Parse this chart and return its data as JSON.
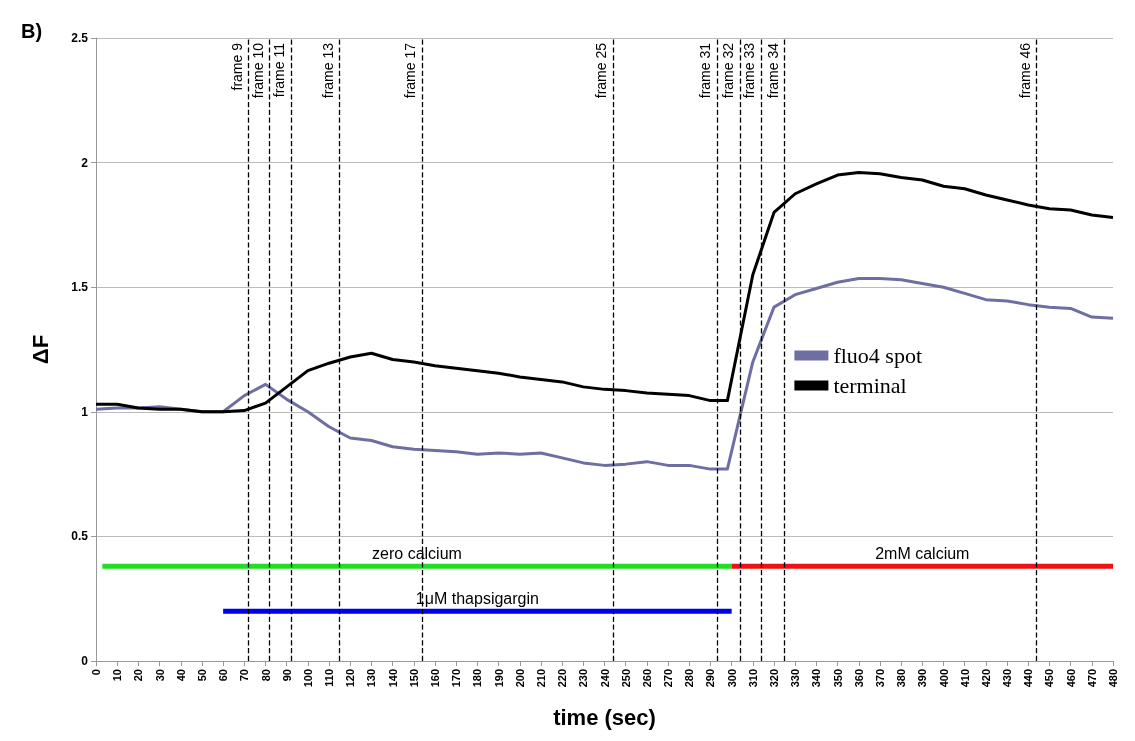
{
  "chart_data": {
    "type": "line",
    "title": "B)",
    "xlabel": "time (sec)",
    "ylabel": "ΔF",
    "x": [
      0,
      10,
      20,
      30,
      40,
      50,
      60,
      70,
      80,
      90,
      100,
      110,
      120,
      130,
      140,
      150,
      160,
      170,
      180,
      190,
      200,
      210,
      220,
      230,
      240,
      250,
      260,
      270,
      280,
      290,
      298,
      310,
      320,
      330,
      340,
      350,
      360,
      370,
      380,
      390,
      400,
      410,
      420,
      430,
      440,
      450,
      460,
      470,
      480
    ],
    "series": [
      {
        "name": "fluo4 spot",
        "color": "#6e6ea3",
        "values": [
          1.01,
          1.015,
          1.015,
          1.02,
          1.01,
          1.0,
          1.0,
          1.065,
          1.11,
          1.05,
          1.0,
          0.94,
          0.895,
          0.885,
          0.86,
          0.85,
          0.845,
          0.84,
          0.83,
          0.835,
          0.83,
          0.835,
          0.815,
          0.795,
          0.785,
          0.79,
          0.8,
          0.785,
          0.785,
          0.77,
          0.77,
          1.2,
          1.42,
          1.47,
          1.495,
          1.52,
          1.535,
          1.535,
          1.53,
          1.515,
          1.5,
          1.475,
          1.45,
          1.445,
          1.43,
          1.42,
          1.415,
          1.38,
          1.375
        ]
      },
      {
        "name": "terminal",
        "color": "#000000",
        "values": [
          1.03,
          1.03,
          1.015,
          1.01,
          1.01,
          1.0,
          1.0,
          1.005,
          1.035,
          1.1,
          1.165,
          1.195,
          1.22,
          1.235,
          1.21,
          1.2,
          1.185,
          1.175,
          1.165,
          1.155,
          1.14,
          1.13,
          1.12,
          1.1,
          1.09,
          1.085,
          1.075,
          1.07,
          1.065,
          1.045,
          1.045,
          1.55,
          1.8,
          1.875,
          1.915,
          1.95,
          1.96,
          1.955,
          1.94,
          1.93,
          1.905,
          1.895,
          1.87,
          1.85,
          1.83,
          1.815,
          1.81,
          1.79,
          1.78
        ]
      },
      {
        "name": "zero calcium",
        "color": "#22dd22",
        "x": [
          3,
          300
        ],
        "values": [
          0.38,
          0.38
        ]
      },
      {
        "name": "2mM calcium",
        "color": "#ee1111",
        "x": [
          300,
          480
        ],
        "values": [
          0.38,
          0.38
        ]
      },
      {
        "name": "1μM thapsigargin",
        "color": "#0000ee",
        "x": [
          60,
          300
        ],
        "values": [
          0.2,
          0.2
        ]
      }
    ],
    "ref_lines": [
      {
        "axis": "x",
        "value": 72,
        "label": "frame 9",
        "color": "#000000",
        "line_style": "dashed"
      },
      {
        "axis": "x",
        "value": 82,
        "label": "frame 10",
        "color": "#000000",
        "line_style": "dashed"
      },
      {
        "axis": "x",
        "value": 92,
        "label": "frame 11",
        "color": "#000000",
        "line_style": "dashed"
      },
      {
        "axis": "x",
        "value": 115,
        "label": "frame 13",
        "color": "#000000",
        "line_style": "dashed"
      },
      {
        "axis": "x",
        "value": 154,
        "label": "frame 17",
        "color": "#000000",
        "line_style": "dashed"
      },
      {
        "axis": "x",
        "value": 244,
        "label": "frame 25",
        "color": "#000000",
        "line_style": "dashed"
      },
      {
        "axis": "x",
        "value": 293,
        "label": "frame 31",
        "color": "#000000",
        "line_style": "dashed"
      },
      {
        "axis": "x",
        "value": 304,
        "label": "frame 32",
        "color": "#000000",
        "line_style": "dashed"
      },
      {
        "axis": "x",
        "value": 314,
        "label": "frame 33",
        "color": "#000000",
        "line_style": "dashed"
      },
      {
        "axis": "x",
        "value": 325,
        "label": "frame 34",
        "color": "#000000",
        "line_style": "dashed"
      },
      {
        "axis": "x",
        "value": 444,
        "label": "frame 46",
        "color": "#000000",
        "line_style": "dashed"
      }
    ],
    "xlim": [
      0,
      480
    ],
    "xticks": [
      0,
      10,
      20,
      30,
      40,
      50,
      60,
      70,
      80,
      90,
      100,
      110,
      120,
      130,
      140,
      150,
      160,
      170,
      180,
      190,
      200,
      210,
      220,
      230,
      240,
      250,
      260,
      270,
      280,
      290,
      300,
      310,
      320,
      330,
      340,
      350,
      360,
      370,
      380,
      390,
      400,
      410,
      420,
      430,
      440,
      450,
      460,
      470,
      480
    ],
    "ylim": [
      0,
      2.5
    ],
    "yticks": [
      0,
      0.5,
      1,
      1.5,
      2,
      2.5
    ],
    "grid": "y",
    "legend": "right",
    "marker": "none",
    "line_style": "solid"
  }
}
